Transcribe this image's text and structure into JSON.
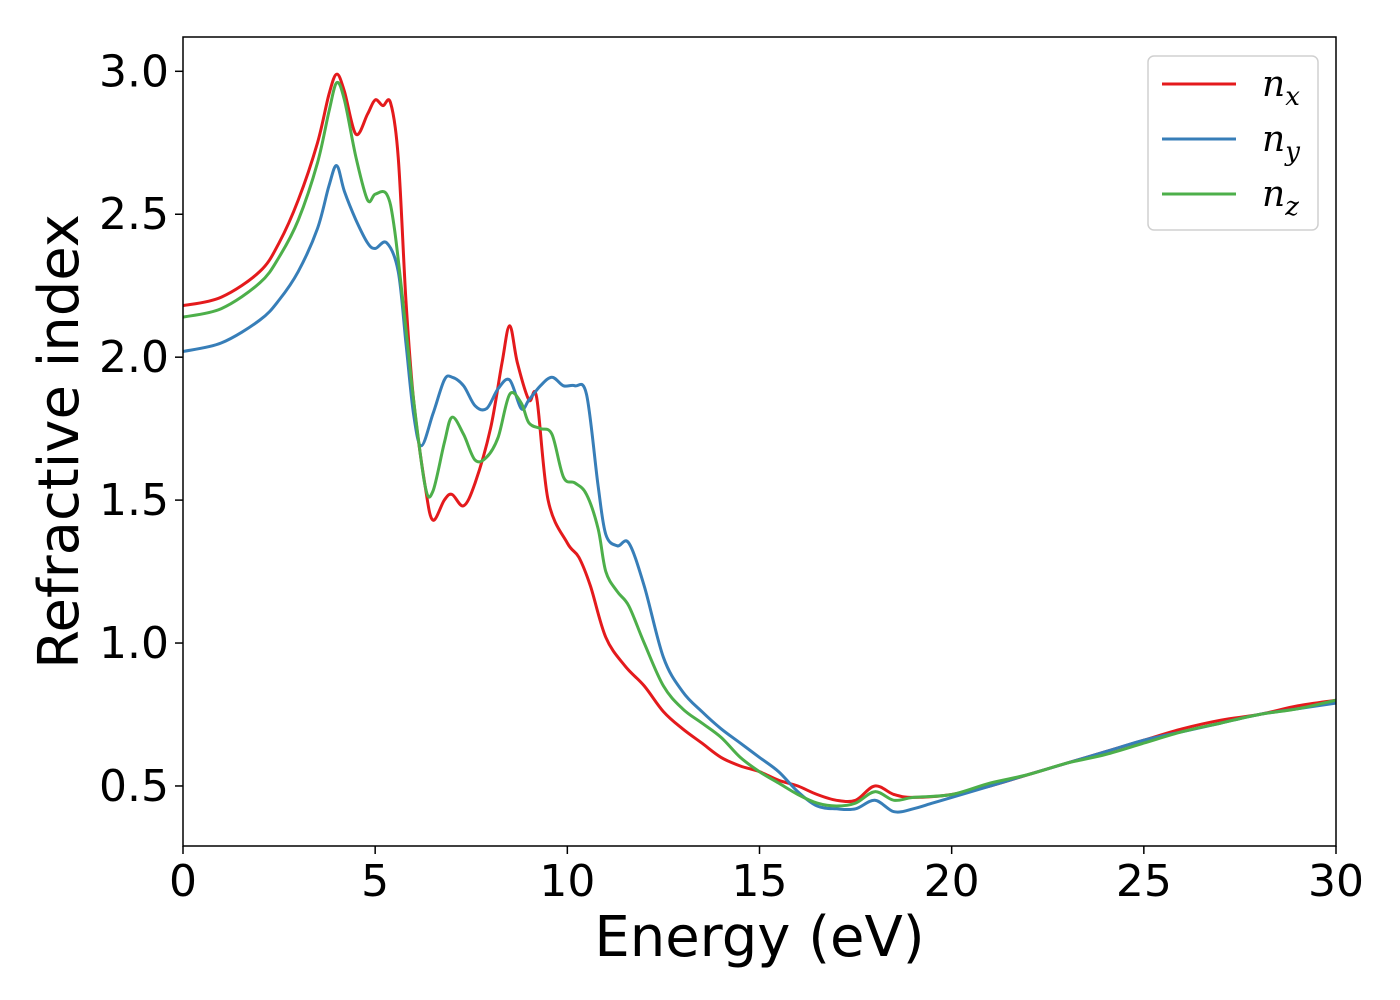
{
  "chart_data": {
    "type": "line",
    "title": "",
    "xlabel": "Energy (eV)",
    "ylabel": "Refractive index",
    "xlim": [
      0,
      30
    ],
    "ylim": [
      0.29,
      3.12
    ],
    "xticks": [
      0,
      5,
      10,
      15,
      20,
      25,
      30
    ],
    "xtick_labels": [
      "0",
      "5",
      "10",
      "15",
      "20",
      "25",
      "30"
    ],
    "yticks": [
      0.5,
      1.0,
      1.5,
      2.0,
      2.5,
      3.0
    ],
    "ytick_labels": [
      "0.5",
      "1.0",
      "1.5",
      "2.0",
      "2.5",
      "3.0"
    ],
    "grid": false,
    "legend_position": "top-right",
    "series": [
      {
        "name": "n",
        "subscript": "x",
        "color": "#e41a1c",
        "x": [
          0,
          1,
          2,
          2.5,
          3,
          3.5,
          3.8,
          4.0,
          4.2,
          4.5,
          4.8,
          5.0,
          5.2,
          5.4,
          5.6,
          5.8,
          6.0,
          6.3,
          6.5,
          6.8,
          7.0,
          7.3,
          7.6,
          8.0,
          8.3,
          8.5,
          8.7,
          9.0,
          9.2,
          9.5,
          10.0,
          10.3,
          10.6,
          11.0,
          11.5,
          12.0,
          12.5,
          13.0,
          13.5,
          14.0,
          14.5,
          15.0,
          15.5,
          16.0,
          16.5,
          17.0,
          17.5,
          18.0,
          18.5,
          19.0,
          20.0,
          21.0,
          22.0,
          23.0,
          24.0,
          25.0,
          26.0,
          27.0,
          28.0,
          29.0,
          30.0
        ],
        "y": [
          2.18,
          2.21,
          2.3,
          2.4,
          2.55,
          2.75,
          2.92,
          2.99,
          2.93,
          2.78,
          2.85,
          2.9,
          2.88,
          2.89,
          2.7,
          2.2,
          1.85,
          1.55,
          1.43,
          1.5,
          1.52,
          1.48,
          1.56,
          1.75,
          1.98,
          2.11,
          1.98,
          1.85,
          1.86,
          1.5,
          1.35,
          1.3,
          1.2,
          1.02,
          0.92,
          0.85,
          0.76,
          0.7,
          0.65,
          0.6,
          0.57,
          0.55,
          0.52,
          0.5,
          0.47,
          0.45,
          0.45,
          0.5,
          0.47,
          0.46,
          0.47,
          0.5,
          0.54,
          0.58,
          0.62,
          0.66,
          0.7,
          0.73,
          0.75,
          0.78,
          0.8
        ]
      },
      {
        "name": "n",
        "subscript": "y",
        "color": "#377eb8",
        "x": [
          0,
          1,
          2,
          2.5,
          3,
          3.5,
          3.8,
          4.0,
          4.2,
          4.5,
          4.8,
          5.0,
          5.3,
          5.6,
          5.8,
          6.0,
          6.2,
          6.5,
          6.8,
          7.0,
          7.3,
          7.6,
          7.9,
          8.2,
          8.5,
          8.8,
          9.0,
          9.3,
          9.6,
          9.9,
          10.2,
          10.5,
          10.8,
          11.0,
          11.3,
          11.6,
          12.0,
          12.5,
          13.0,
          13.5,
          14.0,
          14.5,
          15.0,
          15.5,
          16.0,
          16.5,
          17.0,
          17.5,
          18.0,
          18.5,
          19.0,
          19.5,
          20.0,
          21.0,
          22.0,
          23.0,
          24.0,
          25.0,
          26.0,
          27.0,
          28.0,
          29.0,
          30.0
        ],
        "y": [
          2.02,
          2.05,
          2.13,
          2.2,
          2.3,
          2.45,
          2.6,
          2.67,
          2.58,
          2.48,
          2.4,
          2.38,
          2.4,
          2.3,
          2.05,
          1.8,
          1.69,
          1.8,
          1.92,
          1.93,
          1.9,
          1.83,
          1.82,
          1.89,
          1.92,
          1.82,
          1.85,
          1.9,
          1.93,
          1.9,
          1.9,
          1.87,
          1.55,
          1.38,
          1.34,
          1.35,
          1.2,
          0.95,
          0.83,
          0.76,
          0.7,
          0.65,
          0.6,
          0.55,
          0.48,
          0.43,
          0.42,
          0.42,
          0.45,
          0.41,
          0.42,
          0.44,
          0.46,
          0.5,
          0.54,
          0.58,
          0.62,
          0.66,
          0.69,
          0.72,
          0.75,
          0.77,
          0.79
        ]
      },
      {
        "name": "n",
        "subscript": "z",
        "color": "#4daf4a",
        "x": [
          0,
          1,
          2,
          2.5,
          3,
          3.5,
          3.8,
          4.0,
          4.2,
          4.5,
          4.8,
          5.0,
          5.3,
          5.5,
          5.8,
          6.0,
          6.3,
          6.5,
          6.8,
          7.0,
          7.3,
          7.6,
          7.9,
          8.2,
          8.5,
          8.8,
          9.0,
          9.3,
          9.6,
          9.9,
          10.2,
          10.5,
          10.8,
          11.0,
          11.3,
          11.6,
          12.0,
          12.5,
          13.0,
          13.5,
          14.0,
          14.5,
          15.0,
          15.5,
          16.0,
          16.5,
          17.0,
          17.5,
          18.0,
          18.5,
          19.0,
          20.0,
          21.0,
          22.0,
          23.0,
          24.0,
          25.0,
          26.0,
          27.0,
          28.0,
          29.0,
          30.0
        ],
        "y": [
          2.14,
          2.17,
          2.26,
          2.35,
          2.48,
          2.68,
          2.86,
          2.96,
          2.9,
          2.7,
          2.55,
          2.57,
          2.57,
          2.45,
          2.1,
          1.85,
          1.55,
          1.53,
          1.7,
          1.79,
          1.73,
          1.64,
          1.65,
          1.72,
          1.87,
          1.84,
          1.77,
          1.75,
          1.73,
          1.58,
          1.56,
          1.52,
          1.4,
          1.25,
          1.18,
          1.13,
          1.0,
          0.85,
          0.77,
          0.72,
          0.67,
          0.6,
          0.55,
          0.51,
          0.47,
          0.44,
          0.43,
          0.44,
          0.48,
          0.45,
          0.46,
          0.47,
          0.51,
          0.54,
          0.58,
          0.61,
          0.65,
          0.69,
          0.72,
          0.75,
          0.77,
          0.8
        ]
      }
    ]
  }
}
